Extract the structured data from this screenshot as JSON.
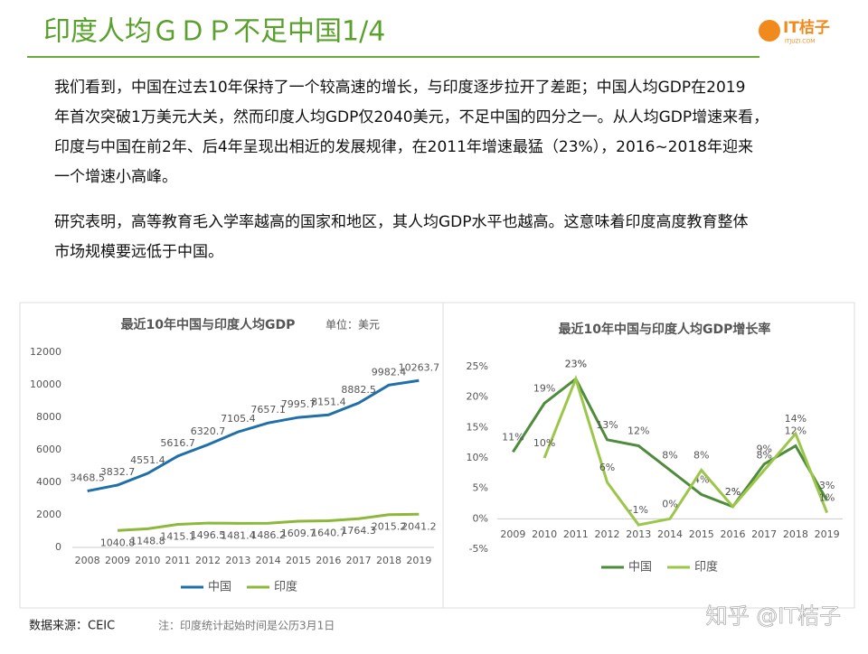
{
  "header": {
    "title": "印度人均ＧＤＰ不足中国1/4",
    "logo": "IT桔子",
    "logo_sub": "ITJUZI.COM"
  },
  "paragraphs": [
    [
      "我们看到，中国在过去10年保持了一个较高速的增长，与印度逐步拉开了差距；中国人均GDP在2019",
      "年首次突破1万美元大关，然而印度人均GDP仅2040美元，不足中国的四分之一。从人均GDP增速来看，",
      "印度与中国在前2年、后4年呈现出相近的发展规律，在2011年增速最猛（23%），2016~2018年迎来",
      "一个增速小高峰。"
    ],
    [
      "研究表明，高等教育毛入学率越高的国家和地区，其人均GDP水平也越高。这意味着印度高度教育整体",
      "市场规模要远低于中国。"
    ]
  ],
  "chart_data": [
    {
      "type": "line",
      "title": "最近10年中国与印度人均GDP",
      "subtitle": "单位：美元",
      "categories": [
        "2008",
        "2009",
        "2010",
        "2011",
        "2012",
        "2013",
        "2014",
        "2015",
        "2016",
        "2017",
        "2018",
        "2019"
      ],
      "series": [
        {
          "name": "中国",
          "color": "#1f6fa8",
          "values": [
            3468.5,
            3832.7,
            4551.4,
            5616.7,
            6320.7,
            7105.4,
            7657.1,
            7995.7,
            8151.4,
            8882.5,
            9982.4,
            10263.7
          ]
        },
        {
          "name": "印度",
          "color": "#8db83c",
          "values": [
            null,
            1040.8,
            1148.8,
            1415.1,
            1496.5,
            1481.4,
            1486.2,
            1609.7,
            1640.7,
            1764.3,
            2015.2,
            2041.2
          ]
        }
      ],
      "ylim": [
        0,
        12000
      ],
      "yticks": [
        0,
        2000,
        4000,
        6000,
        8000,
        10000,
        12000
      ],
      "grid": false,
      "legend": "bottom"
    },
    {
      "type": "line",
      "title": "最近10年中国与印度人均GDP增长率",
      "categories": [
        "2009",
        "2010",
        "2011",
        "2012",
        "2013",
        "2014",
        "2015",
        "2016",
        "2017",
        "2018",
        "2019"
      ],
      "series": [
        {
          "name": "中国",
          "color": "#4e8b3a",
          "values": [
            11,
            19,
            23,
            13,
            12,
            8,
            4,
            2,
            9,
            12,
            3
          ],
          "value_labels": [
            "11%",
            "19%",
            "23%",
            "13%",
            "12%",
            "8%",
            "4%",
            "2%",
            "9%",
            "12%",
            "3%"
          ]
        },
        {
          "name": "印度",
          "color": "#9cc64a",
          "values": [
            null,
            10,
            23,
            6,
            -1,
            0,
            8,
            2,
            8,
            14,
            1
          ],
          "value_labels": [
            null,
            "10%",
            "23%",
            "6%",
            "-1%",
            "0%",
            "8%",
            "2%",
            "8%",
            "14%",
            "1%"
          ]
        }
      ],
      "ylim": [
        -5,
        25
      ],
      "yticks": [
        {
          "value": -5,
          "label": "-5%"
        },
        {
          "value": 0,
          "label": "0%"
        },
        {
          "value": 5,
          "label": "5%"
        },
        {
          "value": 10,
          "label": "10%"
        },
        {
          "value": 15,
          "label": "15%"
        },
        {
          "value": 20,
          "label": "20%"
        },
        {
          "value": 25,
          "label": "25%"
        }
      ],
      "grid": false,
      "legend": "bottom"
    }
  ],
  "footer": {
    "source": "数据来源：CEIC",
    "note": "注：印度统计起始时间是公历3月1日",
    "watermark": "知乎 @IT桔子"
  }
}
